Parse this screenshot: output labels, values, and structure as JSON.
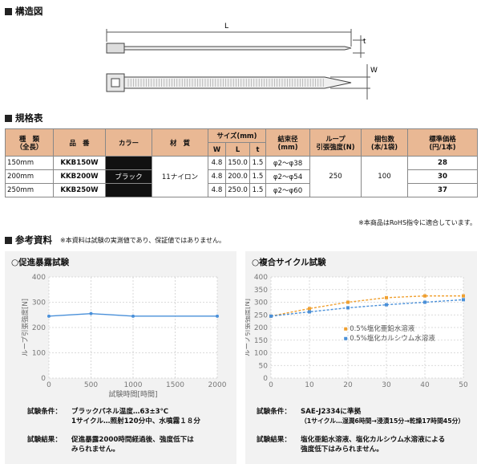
{
  "structure": {
    "title": "構造図",
    "label_L": "L",
    "label_t": "t",
    "label_W": "W"
  },
  "spec": {
    "title": "規格表",
    "headers": {
      "type": "種　類\n（全長）",
      "part": "品　番",
      "color": "カラー",
      "material": "材　質",
      "size": "サイズ(mm)",
      "W": "W",
      "L": "L",
      "t": "t",
      "bundle": "結束径\n(mm)",
      "loop": "ループ\n引張強度(N)",
      "pack": "梱包数\n(本/1袋)",
      "price": "標準価格\n(円/1本)"
    },
    "rows": [
      {
        "length": "150mm",
        "part": "KKB150W",
        "W": "4.8",
        "L": "150.0",
        "t": "1.5",
        "bundle": "φ2～φ38",
        "price": "28"
      },
      {
        "length": "200mm",
        "part": "KKB200W",
        "W": "4.8",
        "L": "200.0",
        "t": "1.5",
        "bundle": "φ2～φ54",
        "price": "30"
      },
      {
        "length": "250mm",
        "part": "KKB250W",
        "W": "4.8",
        "L": "250.0",
        "t": "1.5",
        "bundle": "φ2～φ60",
        "price": "37"
      }
    ],
    "color": "ブラック",
    "material": "11ナイロン",
    "loop": "250",
    "pack": "100",
    "footnote": "※本商品はRoHS指令に適合しています。"
  },
  "reference": {
    "title": "参考資料",
    "note": "※本資料は試験の実測値であり、保証値ではありません。"
  },
  "accel": {
    "title": "○促進暴露試験",
    "cond_label": "試験条件：",
    "cond_lines": [
      "ブラックパネル温度…63±3℃",
      "1サイクル…照射120分中、水噴霧１８分"
    ],
    "result_label": "試験結果：",
    "result_lines": [
      "促進暴露2000時間経過後、強度低下は",
      "みられません。"
    ]
  },
  "cycle": {
    "title": "○複合サイクル試験",
    "cond_label": "試験条件：",
    "cond_lines": [
      "SAE-J2334に準拠",
      "（1サイクル…湿潤6時間→浸漬15分→乾燥17時間45分）"
    ],
    "result_label": "試験結果：",
    "result_lines": [
      "塩化亜鉛水溶液、塩化カルシウム水溶液による",
      "強度低下はみられません。"
    ]
  },
  "chart_data": [
    {
      "type": "line",
      "title": "",
      "xlabel": "試験時間[時間]",
      "ylabel": "ループ引張強度[N]",
      "x": [
        0,
        500,
        1000,
        2000
      ],
      "xticks": [
        0,
        500,
        1000,
        1500,
        2000
      ],
      "yticks": [
        0,
        100,
        200,
        300,
        400
      ],
      "xlim": [
        0,
        2000
      ],
      "ylim": [
        0,
        400
      ],
      "grid": true,
      "series": [
        {
          "values": [
            245,
            255,
            245,
            245
          ],
          "color": "#4a90d9"
        }
      ]
    },
    {
      "type": "line",
      "title": "",
      "xlabel": "",
      "ylabel": "ループ引張強度[N]",
      "x": [
        0,
        10,
        20,
        30,
        40,
        50
      ],
      "xticks": [
        0,
        10,
        20,
        30,
        40,
        50
      ],
      "yticks": [
        0,
        50,
        100,
        150,
        200,
        250,
        300,
        350,
        400
      ],
      "xlim": [
        0,
        50
      ],
      "ylim": [
        0,
        400
      ],
      "grid": true,
      "legend": "center-right",
      "series": [
        {
          "name": "0.5%塩化亜鉛水溶液",
          "values": [
            245,
            275,
            300,
            318,
            325,
            325
          ],
          "color": "#f0a030"
        },
        {
          "name": "0.5%塩化カルシウム水溶液",
          "values": [
            245,
            262,
            278,
            290,
            300,
            310
          ],
          "color": "#4a90d9"
        }
      ]
    }
  ]
}
